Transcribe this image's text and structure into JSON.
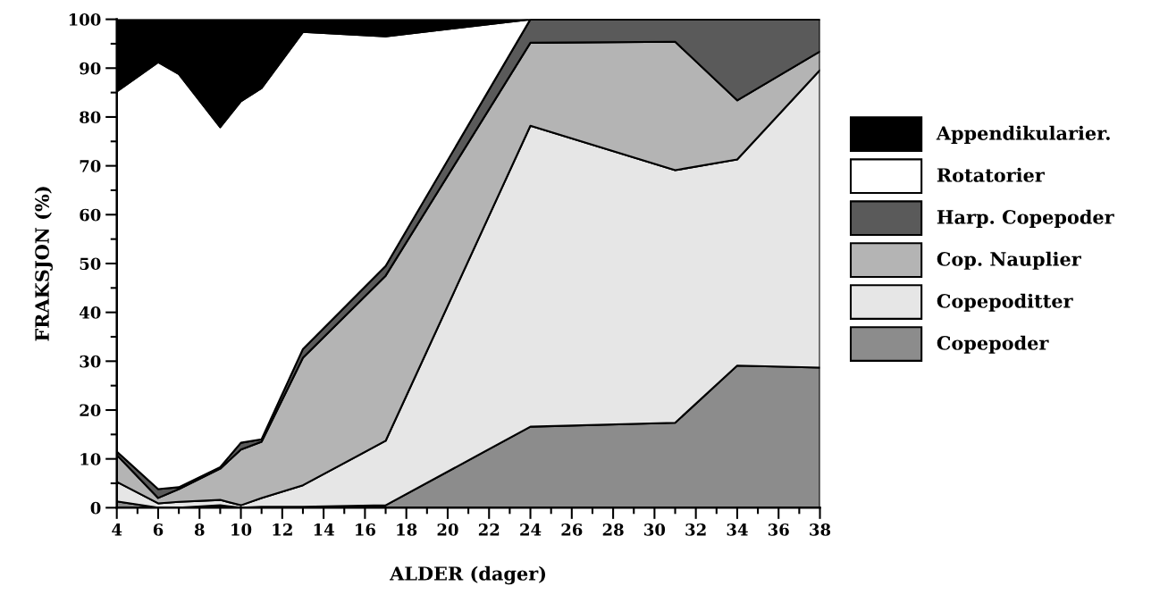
{
  "chart_data": {
    "type": "area",
    "stacked": true,
    "xlabel": "ALDER (dager)",
    "ylabel": "FRAKSJON (%)",
    "x": [
      4,
      6,
      7,
      9,
      10,
      11,
      13,
      17,
      24,
      31,
      34,
      38
    ],
    "series": [
      {
        "name": "Copepoder",
        "color": "#8c8c8c",
        "values": [
          1.3,
          0,
          0,
          0.5,
          0,
          0.2,
          0.2,
          0.5,
          16.6,
          17.4,
          29.1,
          28.7
        ]
      },
      {
        "name": "Copepoditter",
        "color": "#e6e6e6",
        "values": [
          4.0,
          0.9,
          1.2,
          1.1,
          0.5,
          1.8,
          4.4,
          13.2,
          61.6,
          51.7,
          42.2,
          60.9
        ]
      },
      {
        "name": "Cop. Nauplier",
        "color": "#b4b4b4",
        "values": [
          5.5,
          1.1,
          2.6,
          6.4,
          11.4,
          11.5,
          26.1,
          33.8,
          17.0,
          26.3,
          12.1,
          3.8
        ]
      },
      {
        "name": "Harp. Copepoder",
        "color": "#5a5a5a",
        "values": [
          0.7,
          1.8,
          0.4,
          0.3,
          1.4,
          0.5,
          1.8,
          2.0,
          4.8,
          4.6,
          16.6,
          6.6
        ]
      },
      {
        "name": "Rotatorier",
        "color": "#ffffff",
        "values": [
          73.7,
          87.4,
          84.6,
          69.6,
          69.9,
          71.9,
          64.9,
          47.0,
          0,
          0,
          0,
          0
        ]
      },
      {
        "name": "Appendikularier.",
        "color": "#000000",
        "values": [
          14.8,
          8.8,
          11.2,
          22.1,
          16.8,
          14.1,
          2.6,
          3.5,
          0,
          0,
          0,
          0
        ]
      }
    ],
    "xlim": [
      4,
      38
    ],
    "xticks": [
      4,
      6,
      8,
      10,
      12,
      14,
      16,
      18,
      20,
      22,
      24,
      26,
      28,
      30,
      32,
      34,
      36,
      38
    ],
    "ylim": [
      0,
      100
    ],
    "yticks": [
      0,
      10,
      20,
      30,
      40,
      50,
      60,
      70,
      80,
      90,
      100
    ],
    "grid": false,
    "legend": "right"
  }
}
